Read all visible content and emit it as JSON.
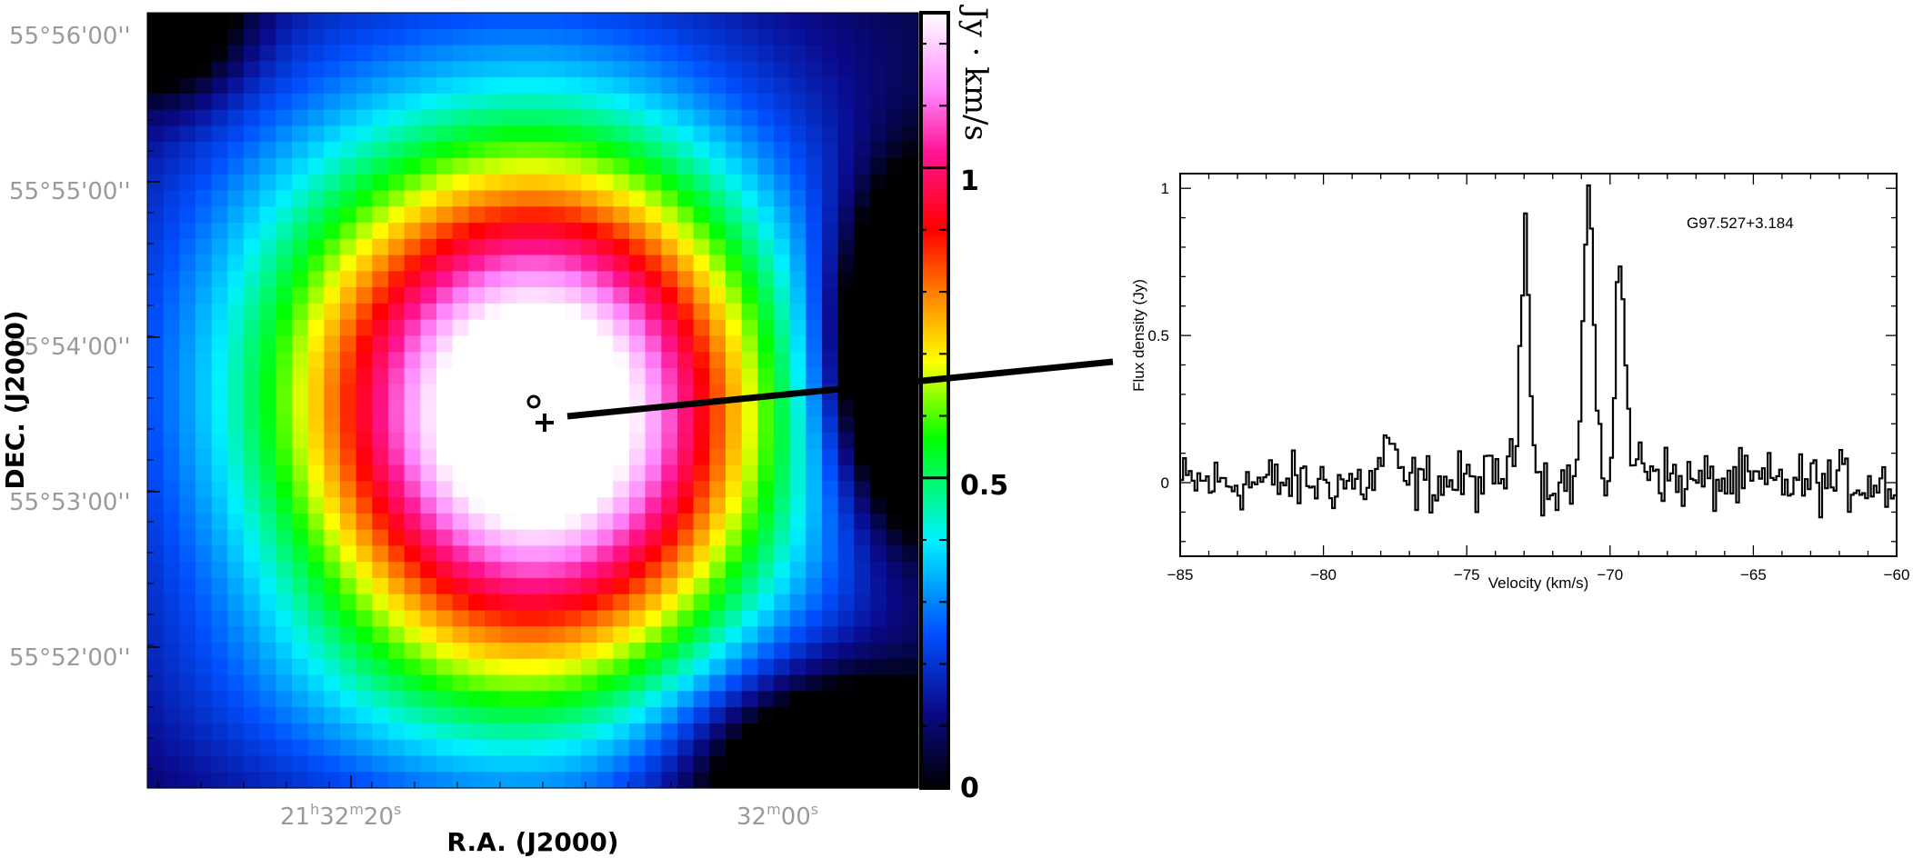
{
  "chart_data": [
    {
      "type": "heatmap",
      "title": "",
      "xlabel": "R.A. (J2000)",
      "ylabel": "DEC. (J2000)",
      "x_ticks": [
        {
          "h": "21",
          "hs": "h",
          "m": "32",
          "ms": "m",
          "s": "20",
          "ss": "s"
        },
        {
          "h": "",
          "hs": "",
          "m": "32",
          "ms": "m",
          "s": "00",
          "ss": "s"
        }
      ],
      "y_ticks": [
        "55°56'00''",
        "55°55'00''",
        "55°54'00''",
        "55°53'00''",
        "55°52'00''"
      ],
      "colorbar": {
        "label": "Jy · km/s",
        "ticks": [
          "1",
          "0.5",
          "0"
        ],
        "range": [
          0,
          1.25
        ],
        "colormap": [
          "#000000",
          "#0a0a8c",
          "#0050ff",
          "#00f0ff",
          "#00ff00",
          "#ffff00",
          "#ff8c00",
          "#ff0000",
          "#ff1493",
          "#ff88ff",
          "#ffffff"
        ]
      },
      "peak_value": 1.2,
      "markers": [
        "circle",
        "plus"
      ]
    },
    {
      "type": "line",
      "title": "G97.527+3.184",
      "xlabel": "Velocity (km/s)",
      "ylabel": "Flux density (Jy)",
      "xlim": [
        -85,
        -60
      ],
      "ylim": [
        -0.25,
        1.05
      ],
      "x_tick_labels": [
        "−85",
        "−80",
        "−75",
        "−70",
        "−65",
        "−60"
      ],
      "y_tick_labels": [
        "0",
        "0.5",
        "1"
      ],
      "peaks": [
        {
          "x": -77.8,
          "y": 0.16
        },
        {
          "x": -73.0,
          "y": 0.87
        },
        {
          "x": -70.8,
          "y": 1.0
        },
        {
          "x": -69.7,
          "y": 0.74
        }
      ],
      "noise_rms": 0.035
    }
  ]
}
